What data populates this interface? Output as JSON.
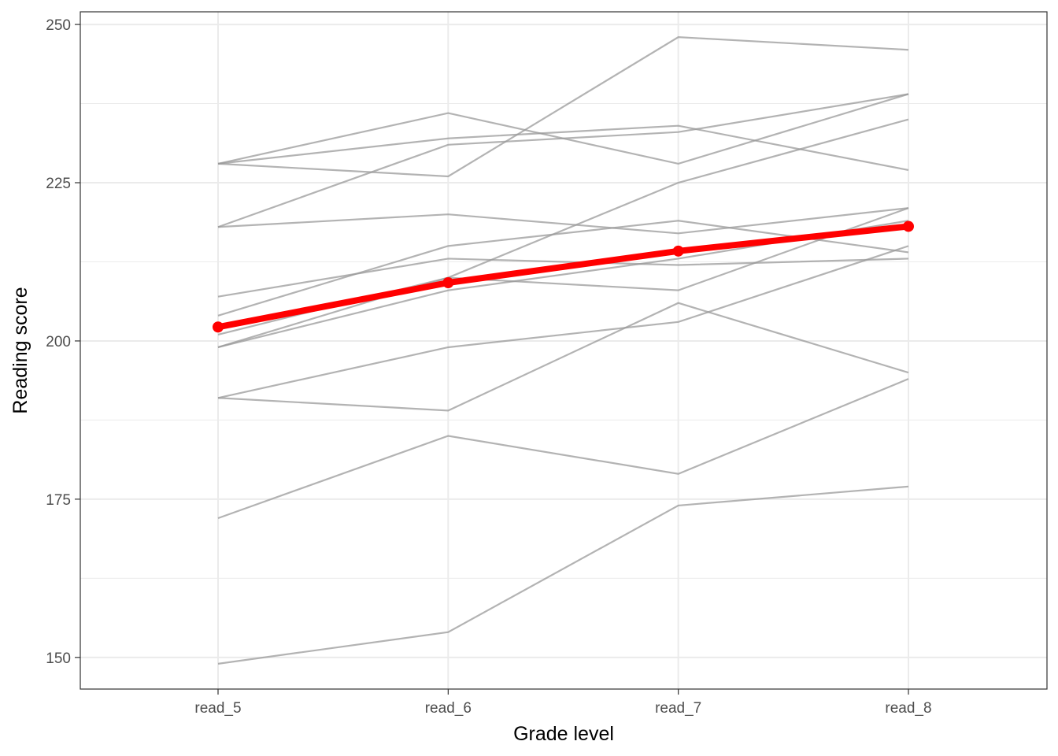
{
  "chart_data": {
    "type": "line",
    "title": "",
    "xlabel": "Grade level",
    "ylabel": "Reading score",
    "categories": [
      "read_5",
      "read_6",
      "read_7",
      "read_8"
    ],
    "ylim": [
      145,
      252
    ],
    "yticks": [
      150,
      175,
      200,
      225,
      250
    ],
    "grid": true,
    "legend": "none",
    "individual_series": [
      {
        "values": [
          149,
          154,
          174,
          177
        ]
      },
      {
        "values": [
          172,
          185,
          179,
          194
        ]
      },
      {
        "values": [
          191,
          189,
          206,
          195
        ]
      },
      {
        "values": [
          191,
          199,
          203,
          215
        ]
      },
      {
        "values": [
          199,
          208,
          213,
          219
        ]
      },
      {
        "values": [
          199,
          210,
          225,
          235
        ]
      },
      {
        "values": [
          201,
          210,
          208,
          221
        ]
      },
      {
        "values": [
          204,
          215,
          219,
          214
        ]
      },
      {
        "values": [
          207,
          213,
          212,
          213
        ]
      },
      {
        "values": [
          218,
          220,
          217,
          221
        ]
      },
      {
        "values": [
          218,
          231,
          233,
          239
        ]
      },
      {
        "values": [
          228,
          226,
          248,
          246
        ]
      },
      {
        "values": [
          228,
          236,
          228,
          239
        ]
      },
      {
        "values": [
          228,
          232,
          234,
          227
        ]
      }
    ],
    "mean_series": {
      "values": [
        202.2,
        209.2,
        214.2,
        218.1
      ],
      "color": "#ff0000"
    },
    "individual_color": "#999999"
  }
}
